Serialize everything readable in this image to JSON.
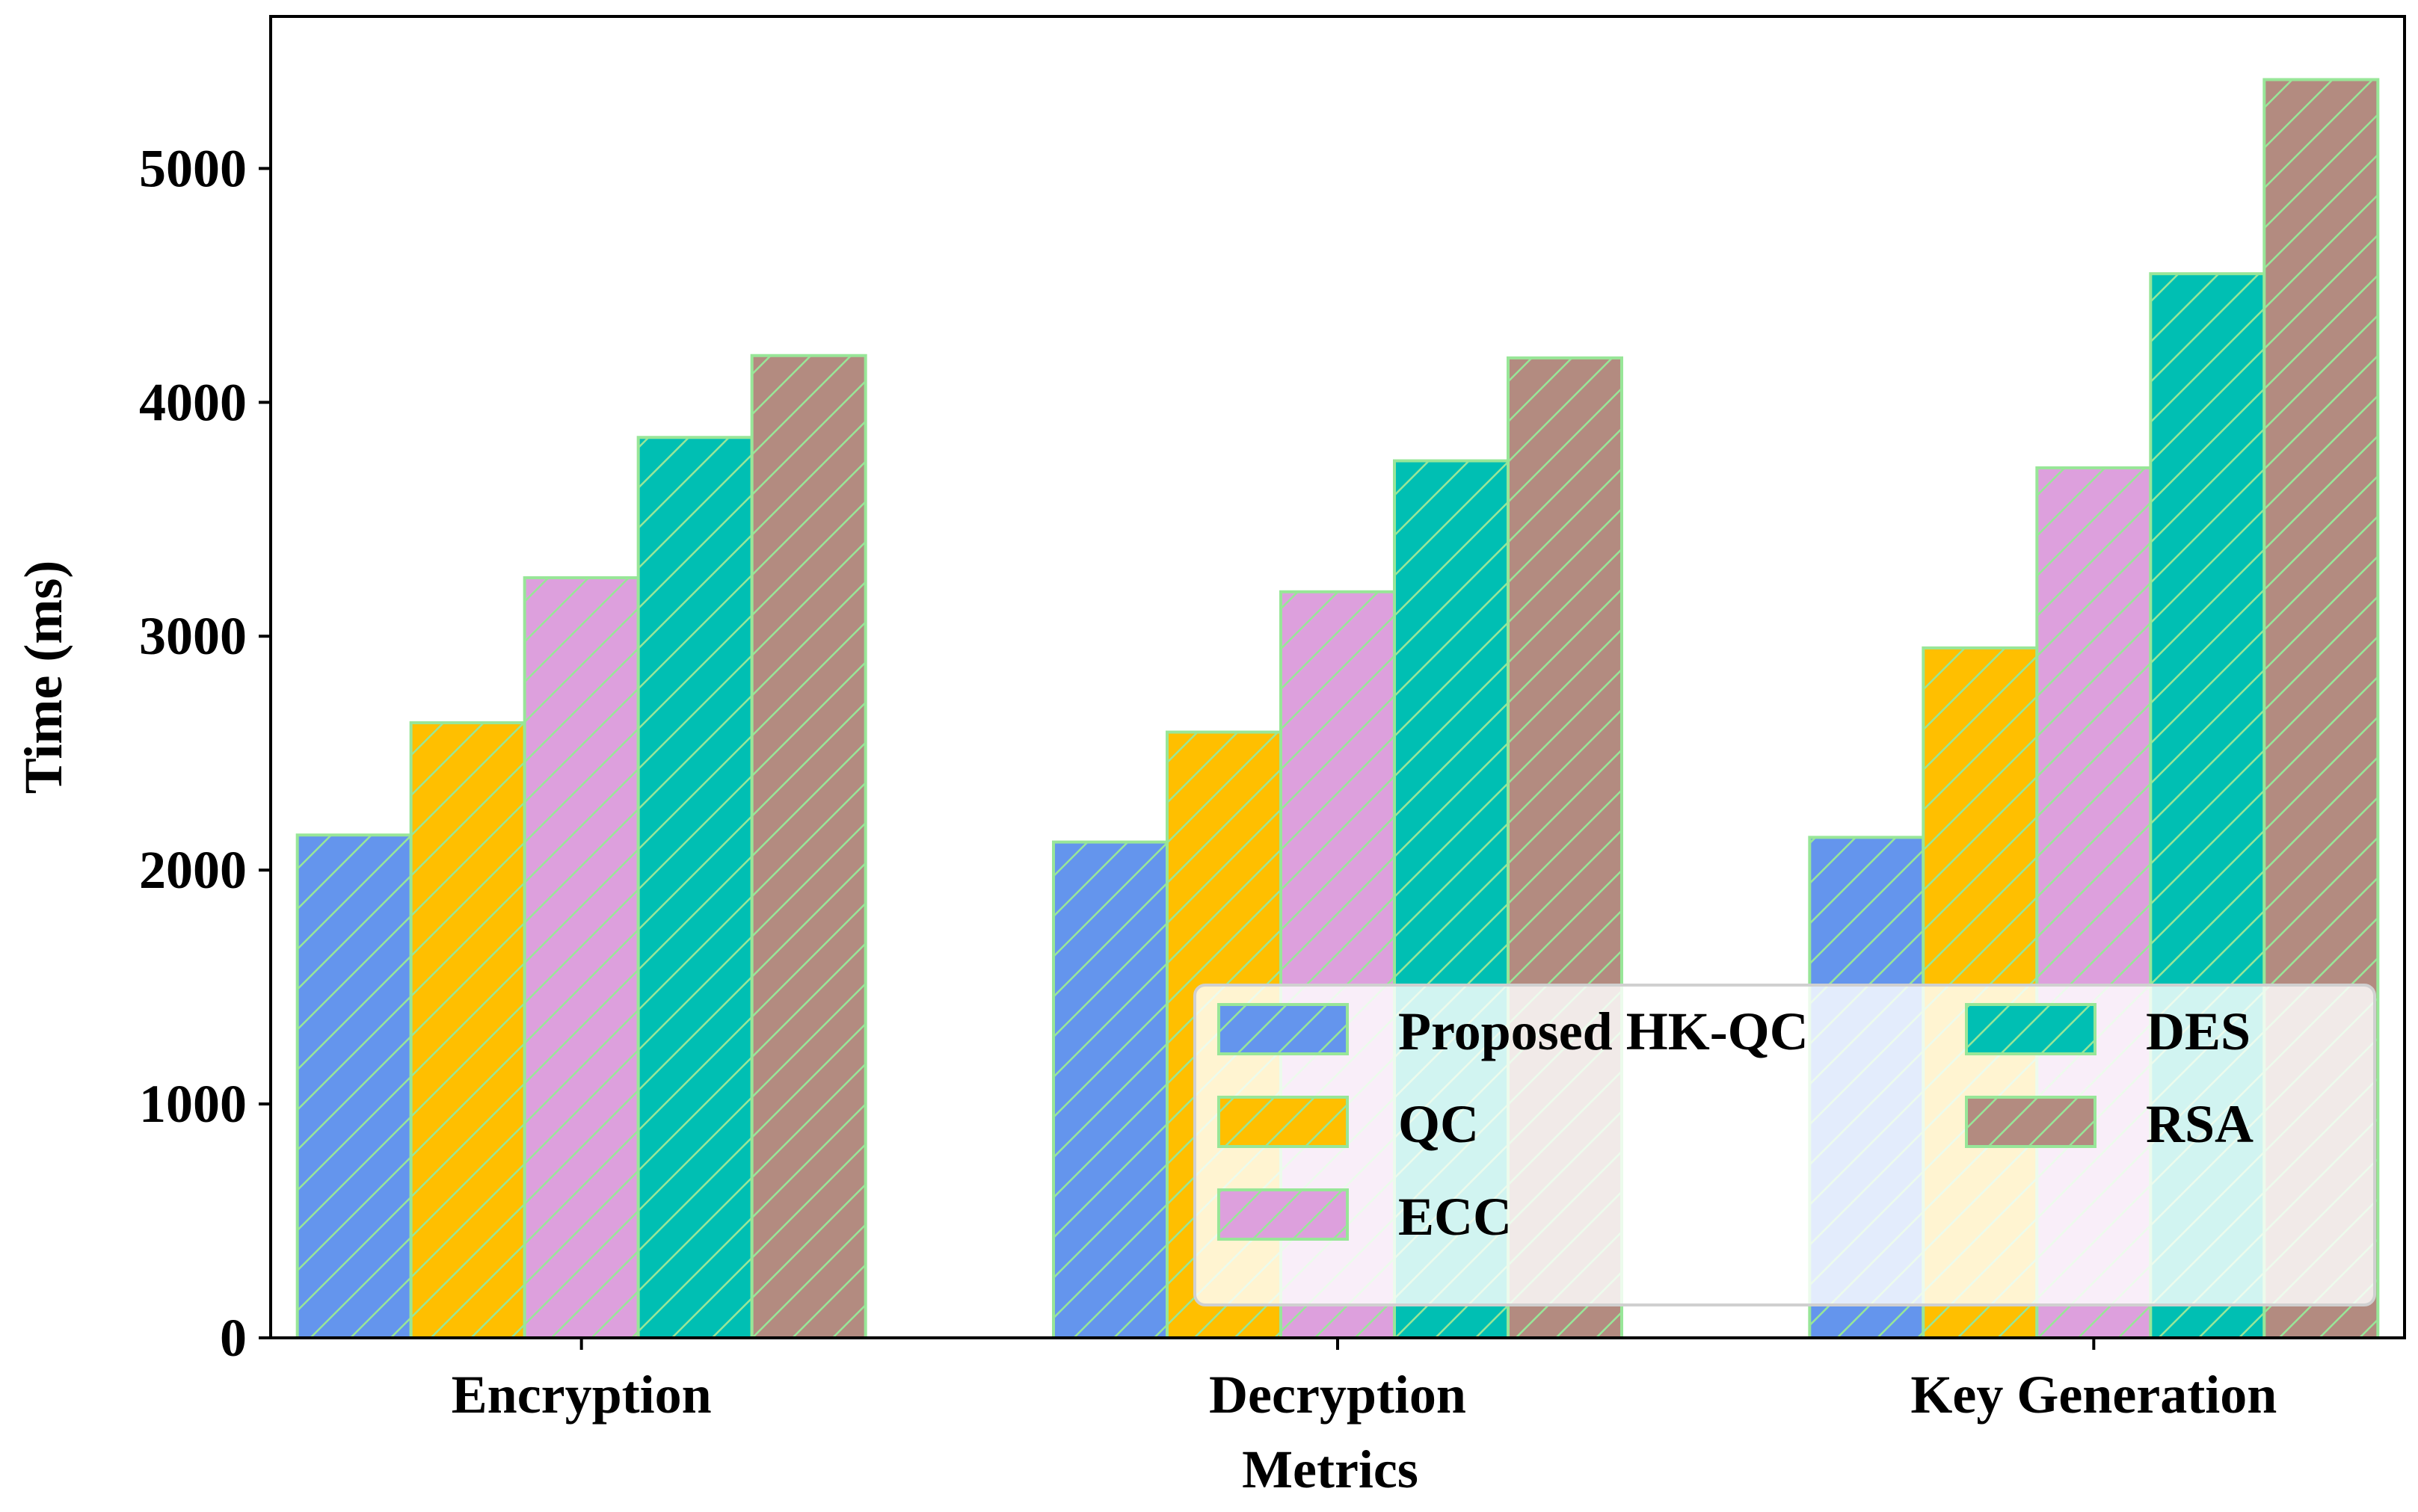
{
  "chart_data": {
    "type": "bar",
    "title": "",
    "xlabel": "Metrics",
    "ylabel": "Time (ms)",
    "categories": [
      "Encryption",
      "Decryption",
      "Key Generation"
    ],
    "ylim": [
      0,
      5650
    ],
    "yticks": [
      0,
      1000,
      2000,
      3000,
      4000,
      5000
    ],
    "grid": false,
    "legend": {
      "placement": "lower-right",
      "columns": 2
    },
    "hatch": "diagonal",
    "edge_color": "#98e698",
    "series": [
      {
        "name": "Proposed HK-QC",
        "color": "#6495ed",
        "values": [
          2150,
          2120,
          2140
        ]
      },
      {
        "name": "QC",
        "color": "#ffbf00",
        "values": [
          2630,
          2590,
          2950
        ]
      },
      {
        "name": "ECC",
        "color": "#dda0dd",
        "values": [
          3250,
          3190,
          3720
        ]
      },
      {
        "name": "DES",
        "color": "#00bfb3",
        "values": [
          3850,
          3750,
          4550
        ]
      },
      {
        "name": "RSA",
        "color": "#b38b80",
        "values": [
          4200,
          4190,
          5380
        ]
      }
    ]
  }
}
